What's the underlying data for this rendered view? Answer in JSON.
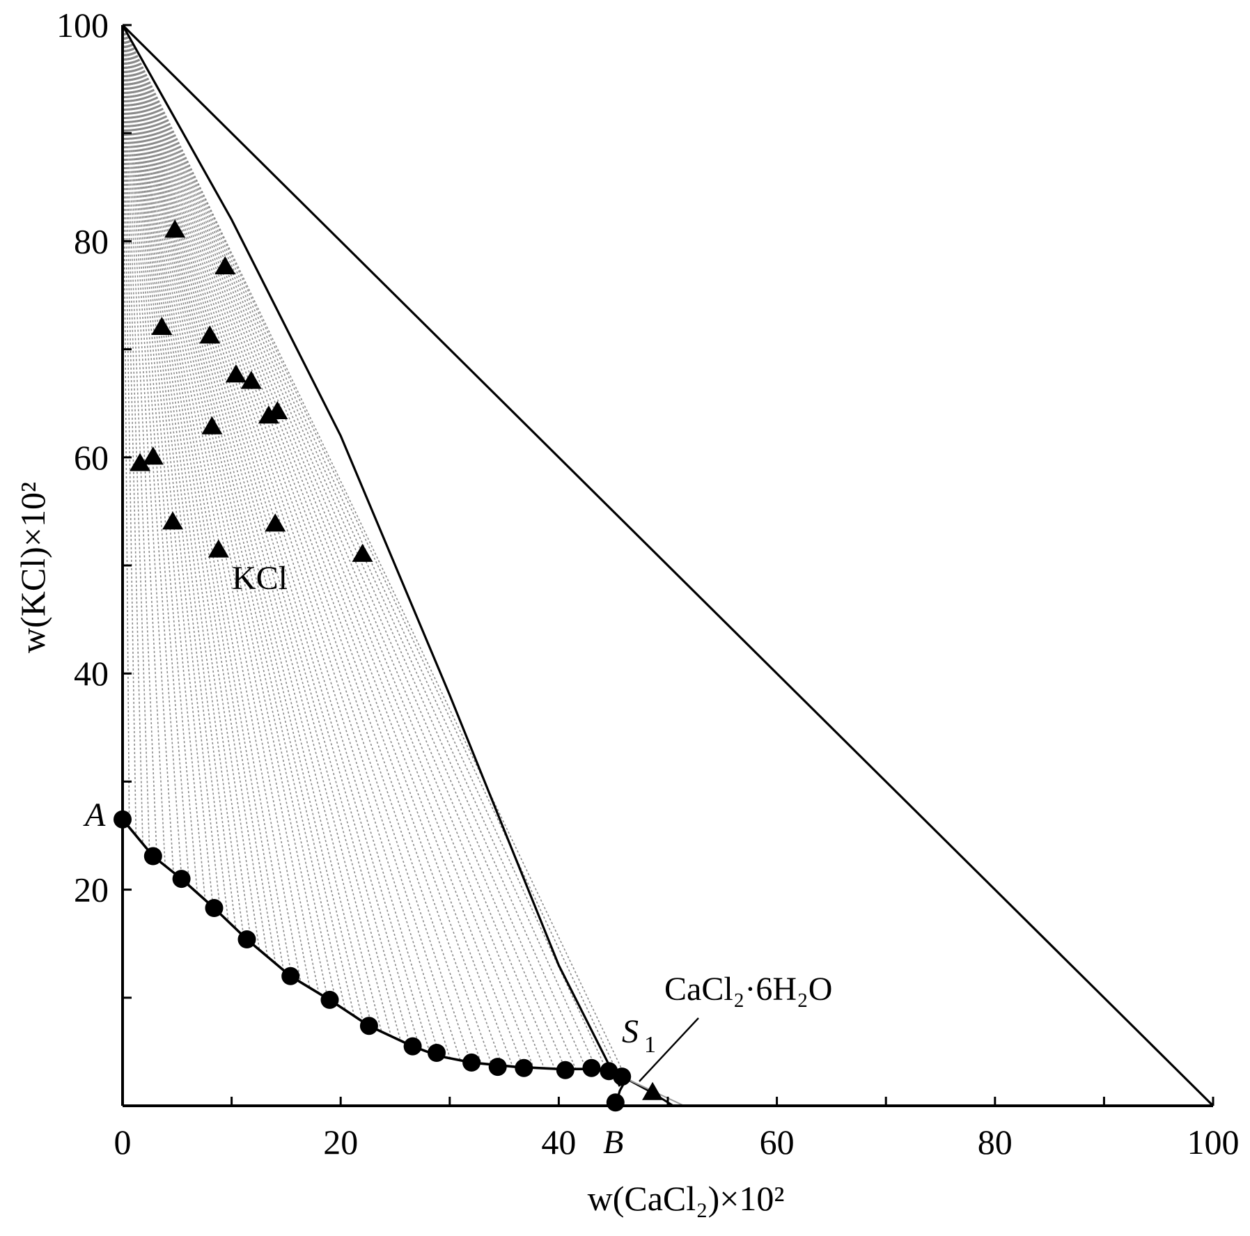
{
  "chart_data": {
    "type": "scatter",
    "xlabel": "w(CaCl₂)×10²",
    "ylabel": "w(KCl)×10²",
    "xlim": [
      0,
      100
    ],
    "ylim": [
      0,
      100
    ],
    "x_ticks": [
      "0",
      "20",
      "40",
      "60",
      "80",
      "100"
    ],
    "y_ticks": [
      "20",
      "40",
      "60",
      "80",
      "100"
    ],
    "annotations": {
      "A": "A",
      "B": "B",
      "S1": "S",
      "S1_sub": "1",
      "KCl": "KCl",
      "CaCl2_6H2O": "CaCl₂·6H₂O"
    },
    "series": [
      {
        "marker": "circle",
        "points": [
          [
            0.0,
            26.5
          ],
          [
            2.8,
            23.1
          ],
          [
            5.4,
            21.0
          ],
          [
            8.4,
            18.3
          ],
          [
            11.4,
            15.4
          ],
          [
            15.4,
            12.0
          ],
          [
            19.0,
            9.8
          ],
          [
            22.6,
            7.4
          ],
          [
            26.6,
            5.5
          ],
          [
            28.8,
            4.9
          ],
          [
            32.0,
            4.0
          ],
          [
            34.4,
            3.6
          ],
          [
            36.8,
            3.5
          ],
          [
            40.6,
            3.3
          ],
          [
            43.0,
            3.5
          ],
          [
            44.6,
            3.2
          ],
          [
            45.8,
            2.7
          ],
          [
            45.2,
            0.3
          ]
        ]
      },
      {
        "marker": "triangle",
        "points": [
          [
            4.8,
            81.0
          ],
          [
            9.4,
            77.6
          ],
          [
            3.6,
            72.0
          ],
          [
            8.0,
            71.2
          ],
          [
            10.4,
            67.6
          ],
          [
            11.8,
            67.0
          ],
          [
            8.2,
            62.8
          ],
          [
            13.4,
            63.8
          ],
          [
            14.2,
            64.2
          ],
          [
            1.6,
            59.4
          ],
          [
            2.8,
            60.0
          ],
          [
            4.6,
            54.0
          ],
          [
            14.0,
            53.8
          ],
          [
            8.8,
            51.4
          ],
          [
            22.0,
            51.0
          ],
          [
            48.6,
            1.2
          ]
        ]
      }
    ],
    "curves": {
      "solubility_AS1": [
        [
          0.0,
          26.5
        ],
        [
          2.8,
          23.1
        ],
        [
          5.4,
          21.0
        ],
        [
          8.4,
          18.3
        ],
        [
          11.4,
          15.4
        ],
        [
          15.4,
          12.0
        ],
        [
          19.0,
          9.8
        ],
        [
          22.6,
          7.4
        ],
        [
          26.6,
          5.5
        ],
        [
          29.0,
          4.6
        ],
        [
          32.0,
          4.0
        ],
        [
          36.0,
          3.6
        ],
        [
          40.0,
          3.4
        ],
        [
          43.0,
          3.4
        ],
        [
          45.5,
          3.0
        ],
        [
          46.2,
          2.5
        ]
      ],
      "S1B": [
        [
          46.2,
          2.5
        ],
        [
          45.6,
          1.4
        ],
        [
          45.2,
          0.0
        ]
      ],
      "S1_to_CaCl2": [
        [
          46.2,
          2.5
        ],
        [
          48.6,
          1.2
        ],
        [
          50.5,
          0.0
        ]
      ],
      "KCl_boundary": [
        [
          0,
          100
        ],
        [
          10,
          82
        ],
        [
          20,
          62
        ],
        [
          30,
          38
        ],
        [
          40,
          13
        ],
        [
          45.6,
          1.8
        ]
      ],
      "hypotenuse": [
        [
          0,
          100
        ],
        [
          100,
          0
        ]
      ]
    }
  }
}
